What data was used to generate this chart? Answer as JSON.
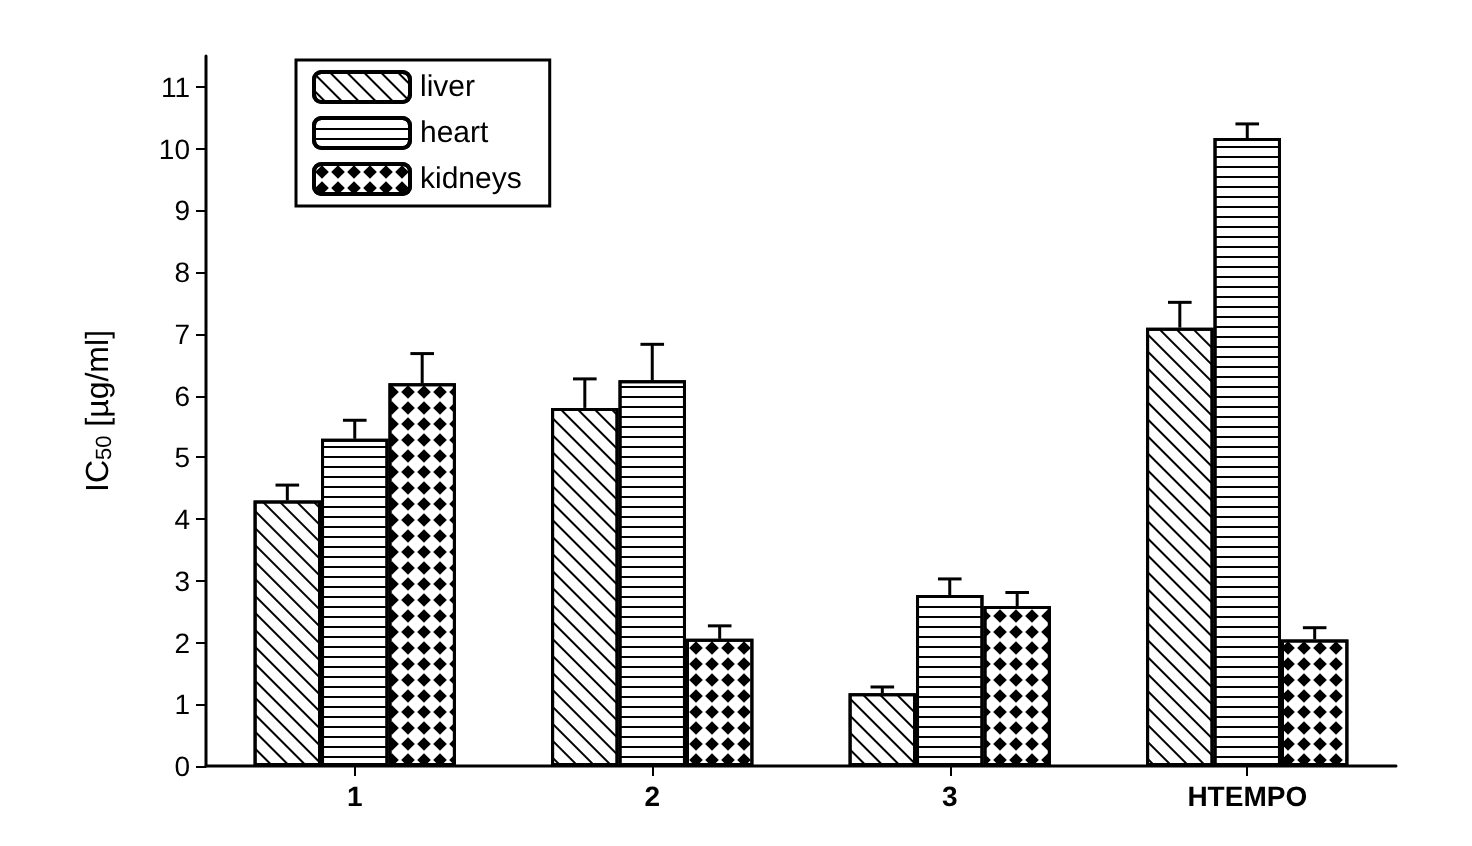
{
  "chart_data": {
    "type": "bar",
    "ylabel": "IC$_{50}$ [µg/ml]",
    "categories": [
      "1",
      "2",
      "3",
      "HTEMPO"
    ],
    "series": [
      {
        "name": "liver",
        "color": "#ffffff",
        "values": [
          4.3,
          5.8,
          1.18,
          7.1
        ],
        "errors": [
          [
            4.3,
            4.55
          ],
          [
            5.8,
            6.27
          ],
          [
            1.18,
            1.28
          ],
          [
            7.1,
            7.51
          ]
        ]
      },
      {
        "name": "heart",
        "color": "#ffffff",
        "values": [
          5.3,
          6.25,
          2.77,
          10.17
        ],
        "errors": [
          [
            5.3,
            5.6
          ],
          [
            6.25,
            6.83
          ],
          [
            2.77,
            3.03
          ],
          [
            10.17,
            10.4
          ]
        ]
      },
      {
        "name": "kidneys",
        "color": "#ffffff",
        "values": [
          6.2,
          2.06,
          2.59,
          2.05
        ],
        "errors": [
          [
            6.2,
            6.68
          ],
          [
            2.06,
            2.27
          ],
          [
            2.59,
            2.81
          ],
          [
            2.05,
            2.24
          ]
        ]
      }
    ],
    "ylim": [
      0,
      11.5
    ],
    "yticks": [
      0,
      1,
      2,
      3,
      4,
      5,
      6,
      7,
      8,
      9,
      10,
      11
    ],
    "legend": "top left",
    "grid": false
  }
}
